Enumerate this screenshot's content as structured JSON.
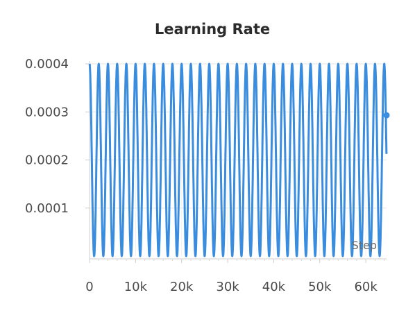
{
  "chart_data": {
    "type": "line",
    "title": "Learning Rate",
    "xlabel": "Step",
    "ylabel": "",
    "xlim": [
      0,
      64500
    ],
    "ylim": [
      0,
      0.0004
    ],
    "x_ticks": [
      0,
      10000,
      20000,
      30000,
      40000,
      50000,
      60000
    ],
    "x_tick_labels": [
      "0",
      "10k",
      "20k",
      "30k",
      "40k",
      "50k",
      "60k"
    ],
    "y_ticks": [
      0.0001,
      0.0002,
      0.0003,
      0.0004
    ],
    "y_tick_labels": [
      "0.0001",
      "0.0002",
      "0.0003",
      "0.0004"
    ],
    "grid": true,
    "series": [
      {
        "color": "#3a8dde",
        "pattern": "cyclic cosine schedule",
        "period_steps": 2000,
        "max": 0.0004,
        "min": 0,
        "x_end": 64500,
        "last_value": 0.000293
      }
    ]
  }
}
